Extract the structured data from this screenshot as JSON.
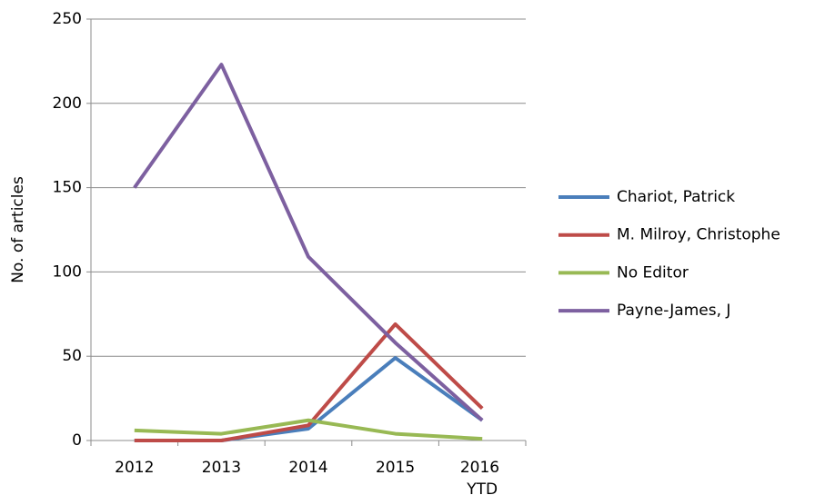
{
  "chart_data": {
    "type": "line",
    "y_label": "No. of articles",
    "categories": [
      "2012",
      "2013",
      "2014",
      "2015",
      "2016 YTD"
    ],
    "series": [
      {
        "name": "Chariot, Patrick",
        "color": "#4a7ebb",
        "values": [
          0,
          0,
          7,
          49,
          12
        ]
      },
      {
        "name": "M. Milroy, Christophe",
        "color": "#be4b48",
        "values": [
          0,
          0,
          9,
          69,
          19
        ]
      },
      {
        "name": "No Editor",
        "color": "#98b954",
        "values": [
          6,
          4,
          12,
          4,
          1
        ]
      },
      {
        "name": "Payne-James, J",
        "color": "#7d60a0",
        "values": [
          150,
          223,
          109,
          58,
          12
        ]
      }
    ],
    "ylim": [
      0,
      250
    ],
    "yticks": [
      0,
      50,
      100,
      150,
      200,
      250
    ],
    "grid": true,
    "legend": "right"
  }
}
